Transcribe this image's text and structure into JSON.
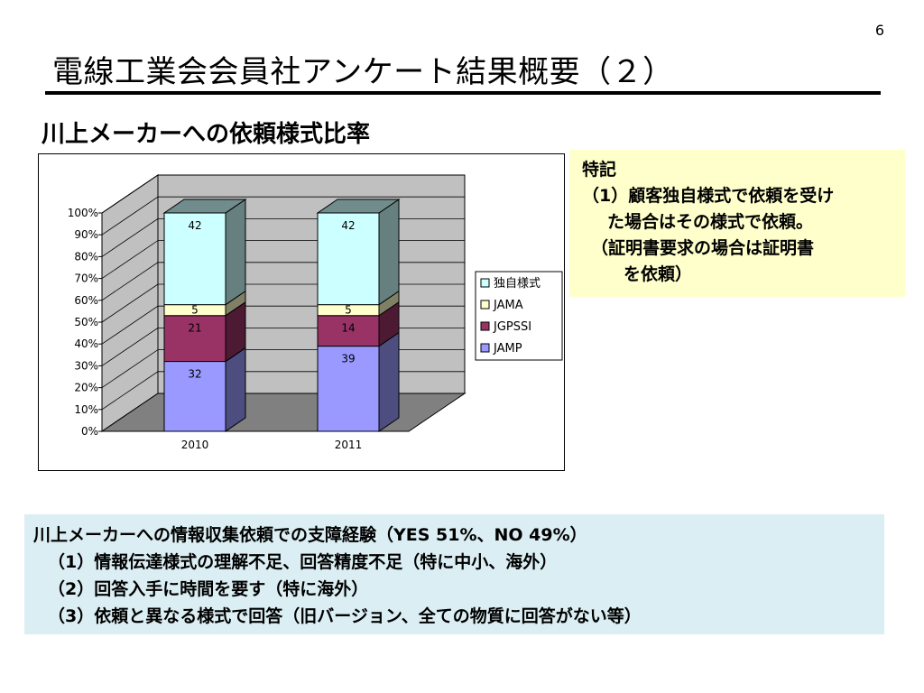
{
  "page_number": "6",
  "title": "電線工業会会員社アンケート結果概要（２）",
  "subtitle": "川上メーカーへの依頼様式比率",
  "chart_data": {
    "type": "bar",
    "stacked": true,
    "style": "3d",
    "percent_stacked": true,
    "title": "",
    "xlabel": "",
    "ylabel": "",
    "categories": [
      "2010",
      "2011"
    ],
    "ylim": [
      0,
      100
    ],
    "y_ticks": [
      "0%",
      "10%",
      "20%",
      "30%",
      "40%",
      "50%",
      "60%",
      "70%",
      "80%",
      "90%",
      "100%"
    ],
    "grid": true,
    "legend_position": "right",
    "series": [
      {
        "name": "JAMP",
        "values": [
          32,
          39
        ],
        "color": "#9999ff"
      },
      {
        "name": "JGPSSI",
        "values": [
          21,
          14
        ],
        "color": "#993366"
      },
      {
        "name": "JAMA",
        "values": [
          5,
          5
        ],
        "color": "#ffffcc"
      },
      {
        "name": "独自様式",
        "values": [
          42,
          42
        ],
        "color": "#ccffff"
      }
    ],
    "legend_order": [
      "独自様式",
      "JAMA",
      "JGPSSI",
      "JAMP"
    ]
  },
  "notes": {
    "heading": "特記",
    "lines": [
      "（1）顧客独自様式で依頼を受け",
      "た場合はその様式で依頼。",
      "（証明書要求の場合は証明書",
      "を依頼）"
    ]
  },
  "survey": {
    "heading": "川上メーカーへの情報収集依頼での支障経験（YES 51%、NO 49%）",
    "items": [
      "（1）情報伝達様式の理解不足、回答精度不足（特に中小、海外）",
      "（2）回答入手に時間を要す（特に海外）",
      "（3）依頼と異なる様式で回答（旧バージョン、全ての物質に回答がない等）"
    ]
  },
  "colors": {
    "note_background": "#ffffcc",
    "survey_background": "#dbeef3",
    "chart_wall": "#c0c0c0",
    "chart_floor": "#808080"
  }
}
